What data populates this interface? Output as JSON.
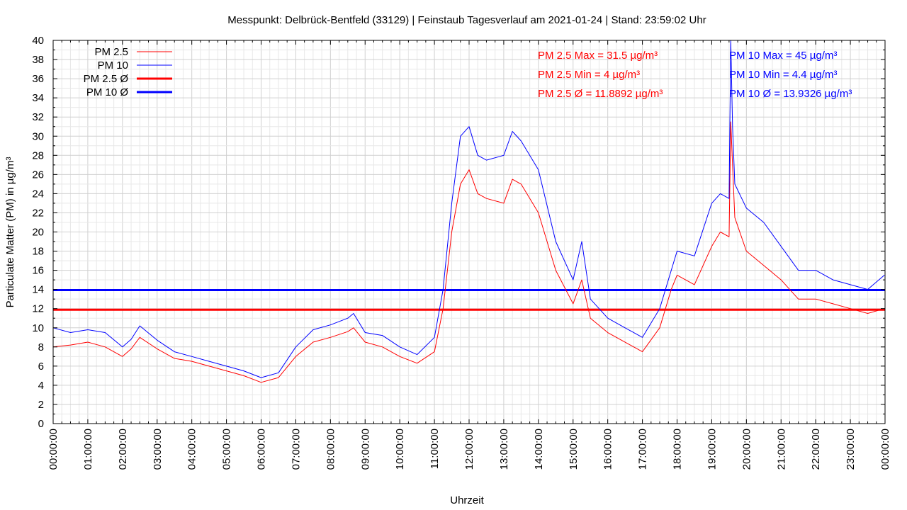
{
  "chart_data": {
    "type": "line",
    "title": "Messpunkt: Delbrück-Bentfeld (33129) | Feinstaub Tagesverlauf am 2021-01-24 | Stand: 23:59:02 Uhr",
    "xlabel": "Uhrzeit",
    "ylabel": "Particulate Matter (PM) in µg/m³",
    "xlim": [
      "00:00:00",
      "24:00:00"
    ],
    "ylim": [
      0,
      40
    ],
    "grid": true,
    "legend_position": "top-left",
    "x_ticks": [
      "00:00:00",
      "01:00:00",
      "02:00:00",
      "03:00:00",
      "04:00:00",
      "05:00:00",
      "06:00:00",
      "07:00:00",
      "08:00:00",
      "09:00:00",
      "10:00:00",
      "11:00:00",
      "12:00:00",
      "13:00:00",
      "14:00:00",
      "15:00:00",
      "16:00:00",
      "17:00:00",
      "18:00:00",
      "19:00:00",
      "20:00:00",
      "21:00:00",
      "22:00:00",
      "23:00:00",
      "00:00:00"
    ],
    "y_ticks": [
      "0",
      "2",
      "4",
      "6",
      "8",
      "10",
      "12",
      "14",
      "16",
      "18",
      "20",
      "22",
      "24",
      "26",
      "28",
      "30",
      "32",
      "34",
      "36",
      "38",
      "40"
    ],
    "x": [
      "00:00",
      "00:30",
      "01:00",
      "01:30",
      "02:00",
      "02:15",
      "02:30",
      "03:00",
      "03:30",
      "04:00",
      "04:30",
      "05:00",
      "05:30",
      "06:00",
      "06:30",
      "07:00",
      "07:30",
      "08:00",
      "08:30",
      "08:40",
      "09:00",
      "09:30",
      "10:00",
      "10:30",
      "11:00",
      "11:15",
      "11:30",
      "11:45",
      "12:00",
      "12:15",
      "12:30",
      "13:00",
      "13:15",
      "13:30",
      "14:00",
      "14:30",
      "15:00",
      "15:15",
      "15:30",
      "16:00",
      "16:30",
      "17:00",
      "17:30",
      "17:50",
      "18:00",
      "18:30",
      "19:00",
      "19:15",
      "19:30",
      "19:33",
      "19:36",
      "19:40",
      "20:00",
      "20:30",
      "21:00",
      "21:30",
      "22:00",
      "22:30",
      "23:00",
      "23:30",
      "23:59"
    ],
    "series": [
      {
        "name": "PM 2.5",
        "color": "#ff0000",
        "values": [
          8.0,
          8.2,
          8.5,
          8.0,
          7.0,
          7.8,
          9.0,
          7.8,
          6.8,
          6.5,
          6.0,
          5.5,
          5.0,
          4.3,
          4.8,
          7.0,
          8.5,
          9.0,
          9.6,
          10.0,
          8.5,
          8.0,
          7.0,
          6.3,
          7.5,
          12.0,
          20.0,
          25.0,
          26.5,
          24.0,
          23.5,
          23.0,
          25.5,
          25.0,
          22.0,
          16.0,
          12.5,
          15.0,
          11.0,
          9.5,
          8.5,
          7.5,
          10.0,
          14.0,
          15.5,
          14.5,
          18.5,
          20.0,
          19.5,
          31.5,
          27.0,
          21.5,
          18.0,
          16.5,
          15.0,
          13.0,
          13.0,
          12.5,
          12.0,
          11.5,
          12.0
        ]
      },
      {
        "name": "PM 10",
        "color": "#0000ff",
        "values": [
          10.0,
          9.5,
          9.8,
          9.5,
          8.0,
          8.8,
          10.2,
          8.7,
          7.5,
          7.0,
          6.5,
          6.0,
          5.5,
          4.8,
          5.3,
          8.0,
          9.8,
          10.3,
          11.0,
          11.5,
          9.5,
          9.2,
          8.0,
          7.2,
          9.0,
          14.0,
          23.0,
          30.0,
          31.0,
          28.0,
          27.5,
          28.0,
          30.5,
          29.5,
          26.5,
          19.0,
          15.0,
          19.0,
          13.0,
          11.0,
          10.0,
          9.0,
          12.0,
          16.0,
          18.0,
          17.5,
          23.0,
          24.0,
          23.5,
          45.0,
          31.0,
          25.0,
          22.5,
          21.0,
          18.5,
          16.0,
          16.0,
          15.0,
          14.5,
          14.0,
          15.5
        ]
      },
      {
        "name": "PM 2.5 Ø",
        "color": "#ff0000",
        "constant": 11.8892
      },
      {
        "name": "PM 10 Ø",
        "color": "#0000ff",
        "constant": 13.9326
      }
    ],
    "annotations": [
      {
        "text": "PM 2.5 Max = 31.5 µg/m³",
        "color": "#ff0000"
      },
      {
        "text": "PM 2.5 Min = 4 µg/m³",
        "color": "#ff0000"
      },
      {
        "text": "PM 2.5 Ø = 11.8892 µg/m³",
        "color": "#ff0000"
      },
      {
        "text": "PM 10 Max = 45 µg/m³",
        "color": "#0000ff"
      },
      {
        "text": "PM 10 Min = 4.4 µg/m³",
        "color": "#0000ff"
      },
      {
        "text": "PM 10 Ø = 13.9326 µg/m³",
        "color": "#0000ff"
      }
    ]
  }
}
